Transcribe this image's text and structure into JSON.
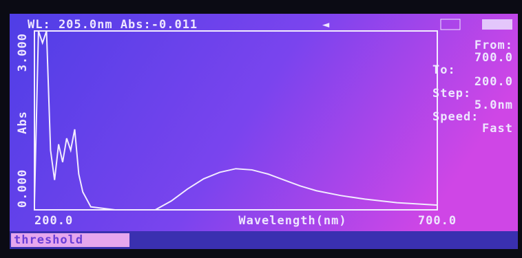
{
  "header": {
    "reading": "WL: 205.0nm Abs:-0.011",
    "arrow": "◄"
  },
  "side_panel": {
    "from_label": "From:",
    "from_value": "700.0",
    "to_label": "To:",
    "to_value": "200.0",
    "step_label": "Step:",
    "step_value": "5.0nm",
    "speed_label": "Speed:",
    "speed_value": "Fast"
  },
  "status_bar": {
    "text": "threshold"
  },
  "chart_data": {
    "type": "line",
    "xlabel": "Wavelength(nm)",
    "ylabel": "Abs",
    "color": "#f2ecff",
    "x": [
      200,
      205,
      210,
      215,
      220,
      225,
      230,
      235,
      240,
      245,
      250,
      255,
      260,
      270,
      300,
      350,
      370,
      390,
      410,
      430,
      450,
      470,
      490,
      510,
      530,
      550,
      580,
      610,
      650,
      700
    ],
    "values": [
      0.1,
      3.0,
      2.8,
      3.0,
      1.0,
      0.5,
      1.1,
      0.8,
      1.2,
      1.0,
      1.35,
      0.6,
      0.3,
      0.05,
      0.0,
      0.0,
      0.15,
      0.35,
      0.52,
      0.63,
      0.69,
      0.67,
      0.6,
      0.5,
      0.4,
      0.32,
      0.24,
      0.18,
      0.12,
      0.08
    ],
    "xlim": [
      200,
      700
    ],
    "ylim": [
      0,
      3
    ],
    "xticks": [
      {
        "value": 200,
        "label": "200.0"
      },
      {
        "value": 700,
        "label": "700.0"
      }
    ],
    "yticks": [
      {
        "value": 0,
        "label": "0.000"
      },
      {
        "value": 3,
        "label": "3.000"
      }
    ]
  }
}
